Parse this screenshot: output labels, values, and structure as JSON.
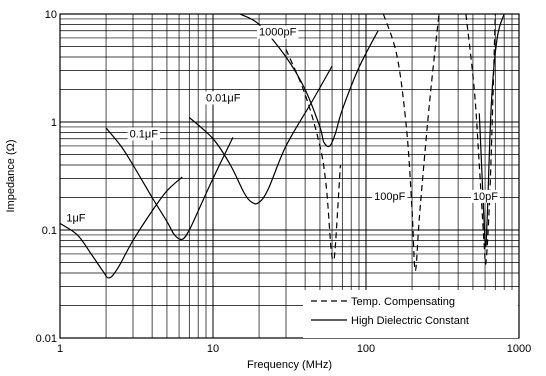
{
  "chart_data": {
    "type": "line",
    "xlabel": "Frequency (MHz)",
    "ylabel": "Impedance (Ω)",
    "xscale": "log",
    "yscale": "log",
    "xlim": [
      1,
      1000
    ],
    "ylim": [
      0.01,
      10
    ],
    "grid": true,
    "x_ticks": [
      {
        "value": 1,
        "label": "1"
      },
      {
        "value": 10,
        "label": "10"
      },
      {
        "value": 100,
        "label": "100"
      },
      {
        "value": 1000,
        "label": "1000"
      }
    ],
    "y_ticks": [
      {
        "value": 0.01,
        "label": "0.01"
      },
      {
        "value": 0.1,
        "label": "0.1"
      },
      {
        "value": 1,
        "label": "1"
      },
      {
        "value": 10,
        "label": "10"
      }
    ],
    "legend": {
      "placement": "bottom-right",
      "entries": [
        {
          "label": "Temp. Compensating",
          "style": "dashed"
        },
        {
          "label": "High Dielectric Constant",
          "style": "solid"
        }
      ]
    },
    "series": [
      {
        "name": "1μF",
        "style": "solid",
        "label_at": [
          1.1,
          0.12
        ],
        "x": [
          1,
          1.3,
          1.6,
          1.9,
          2.1,
          2.4,
          3,
          4,
          5,
          6.3
        ],
        "y": [
          0.115,
          0.09,
          0.06,
          0.042,
          0.036,
          0.045,
          0.08,
          0.15,
          0.23,
          0.31
        ]
      },
      {
        "name": "0.1μF",
        "style": "solid",
        "label_at": [
          2.85,
          0.72
        ],
        "x": [
          2,
          2.5,
          3,
          4,
          5,
          5.6,
          6.3,
          7,
          8,
          10,
          13.5
        ],
        "y": [
          0.88,
          0.6,
          0.4,
          0.2,
          0.12,
          0.09,
          0.082,
          0.1,
          0.15,
          0.3,
          0.72
        ]
      },
      {
        "name": "0.01μF",
        "style": "solid",
        "label_at": [
          9,
          1.55
        ],
        "x": [
          7,
          10,
          13,
          16,
          18,
          20,
          23,
          30,
          45,
          60
        ],
        "y": [
          1.1,
          0.7,
          0.4,
          0.22,
          0.18,
          0.18,
          0.24,
          0.6,
          1.6,
          3.3
        ]
      },
      {
        "name": "1000pF",
        "style": "solid",
        "label_at": [
          20,
          6.3
        ],
        "x": [
          15,
          20,
          30,
          40,
          50,
          53,
          58,
          63,
          70,
          90,
          120
        ],
        "y": [
          10,
          8,
          4,
          2,
          0.9,
          0.65,
          0.6,
          0.78,
          1.3,
          3.2,
          7
        ]
      },
      {
        "name": "1000pF",
        "style": "dashed",
        "x": [
          30,
          40,
          50,
          55,
          59,
          61,
          63,
          68
        ],
        "y": [
          4.7,
          1.8,
          0.6,
          0.25,
          0.07,
          0.053,
          0.07,
          0.4
        ]
      },
      {
        "name": "100pF",
        "style": "dashed",
        "label_at": [
          113,
          0.19
        ],
        "x": [
          130,
          160,
          185,
          200,
          210,
          225,
          260,
          300
        ],
        "y": [
          10,
          4,
          0.8,
          0.15,
          0.042,
          0.15,
          1.5,
          10
        ]
      },
      {
        "name": "10pF",
        "style": "dashed",
        "label_at": [
          500,
          0.19
        ],
        "x": [
          450,
          510,
          550,
          590,
          610,
          650,
          700
        ],
        "y": [
          10,
          2,
          0.4,
          0.08,
          0.052,
          0.3,
          10
        ]
      },
      {
        "name": "10pF",
        "style": "solid",
        "x": [
          550,
          590,
          605,
          620,
          660,
          720,
          800
        ],
        "y": [
          1.2,
          0.13,
          0.07,
          0.13,
          1.5,
          6,
          10
        ]
      }
    ]
  }
}
